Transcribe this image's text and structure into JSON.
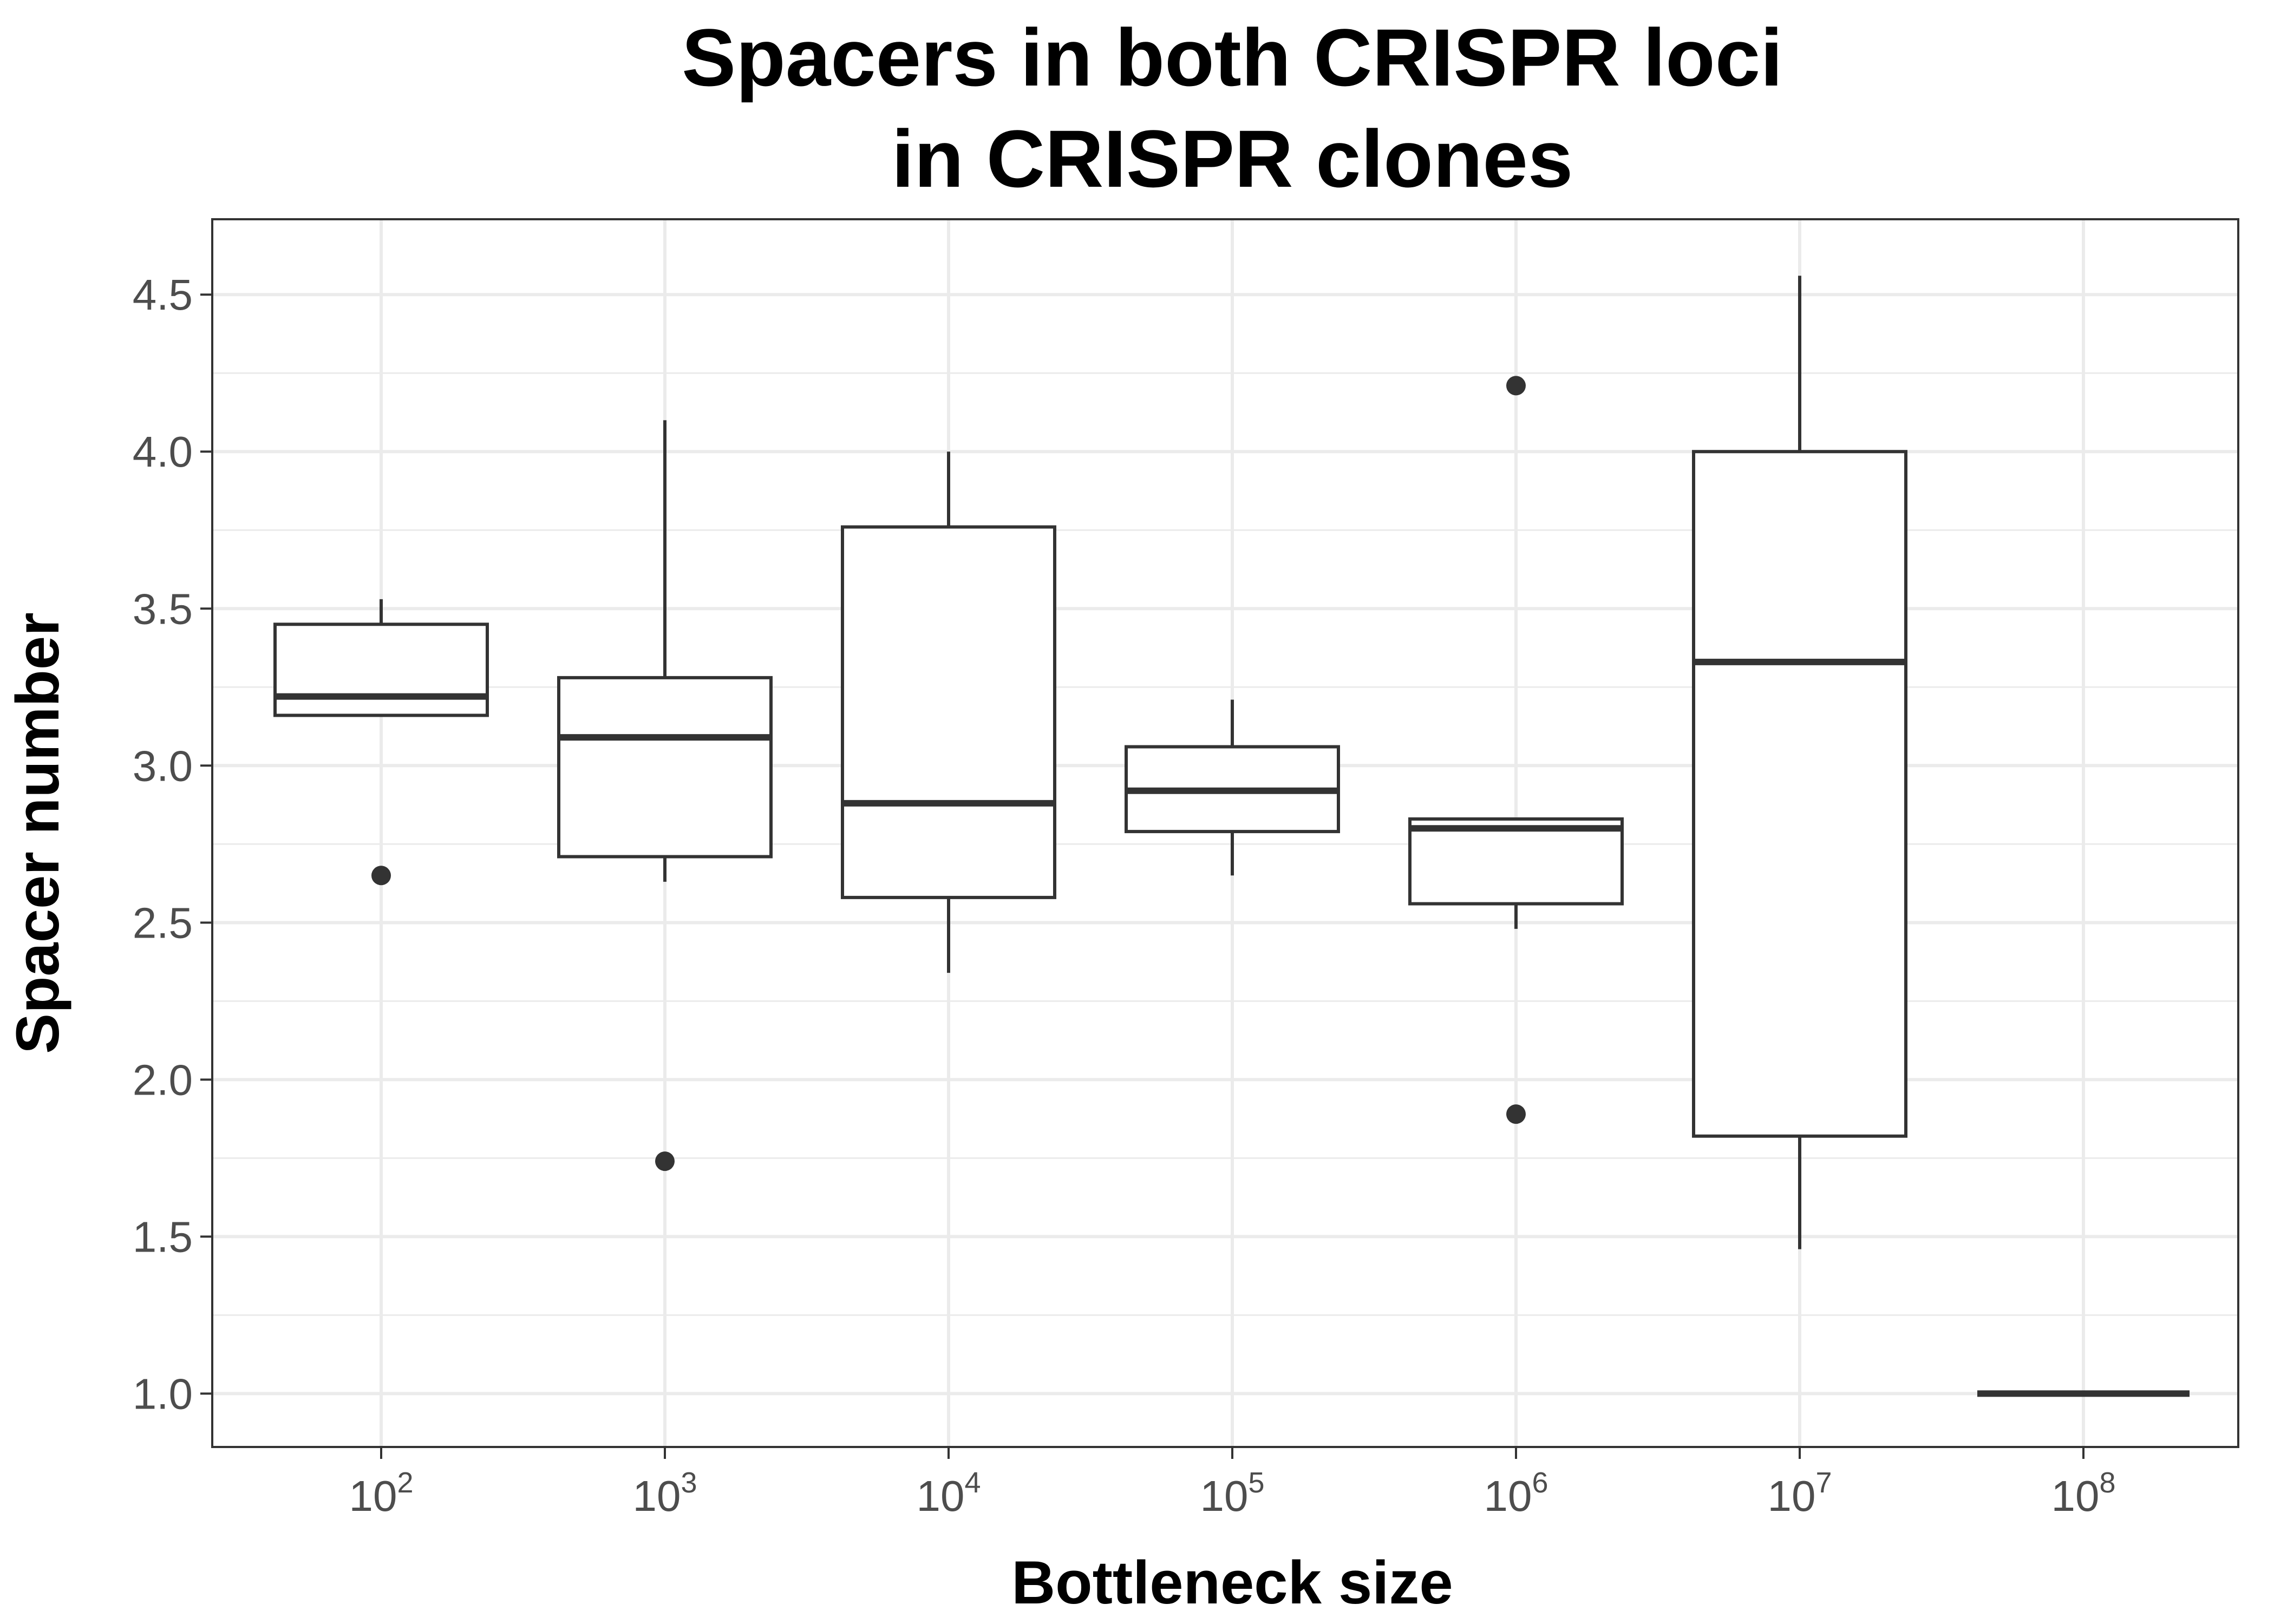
{
  "chart_data": {
    "type": "boxplot",
    "title_lines": [
      "Spacers in both CRISPR loci",
      "in CRISPR clones"
    ],
    "xlabel": "Bottleneck size",
    "ylabel": "Spacer number",
    "ylim": [
      0.83,
      4.74
    ],
    "grid": true,
    "y_ticks": [
      {
        "value": 1.0,
        "label": "1.0"
      },
      {
        "value": 1.5,
        "label": "1.5"
      },
      {
        "value": 2.0,
        "label": "2.0"
      },
      {
        "value": 2.5,
        "label": "2.5"
      },
      {
        "value": 3.0,
        "label": "3.0"
      },
      {
        "value": 3.5,
        "label": "3.5"
      },
      {
        "value": 4.0,
        "label": "4.0"
      },
      {
        "value": 4.5,
        "label": "4.5"
      }
    ],
    "categories": [
      {
        "base": "10",
        "exponent": "2",
        "value": 100
      },
      {
        "base": "10",
        "exponent": "3",
        "value": 1000
      },
      {
        "base": "10",
        "exponent": "4",
        "value": 10000
      },
      {
        "base": "10",
        "exponent": "5",
        "value": 100000
      },
      {
        "base": "10",
        "exponent": "6",
        "value": 1000000
      },
      {
        "base": "10",
        "exponent": "7",
        "value": 10000000
      },
      {
        "base": "10",
        "exponent": "8",
        "value": 100000000
      }
    ],
    "boxes": [
      {
        "category": 100,
        "whisker_low": 3.16,
        "q1": 3.16,
        "median": 3.22,
        "q3": 3.45,
        "whisker_high": 3.53,
        "outliers": [
          2.65
        ]
      },
      {
        "category": 1000,
        "whisker_low": 2.63,
        "q1": 2.71,
        "median": 3.09,
        "q3": 3.28,
        "whisker_high": 4.1,
        "outliers": [
          1.74
        ]
      },
      {
        "category": 10000,
        "whisker_low": 2.34,
        "q1": 2.58,
        "median": 2.88,
        "q3": 3.76,
        "whisker_high": 4.0,
        "outliers": []
      },
      {
        "category": 100000,
        "whisker_low": 2.65,
        "q1": 2.79,
        "median": 2.92,
        "q3": 3.06,
        "whisker_high": 3.21,
        "outliers": []
      },
      {
        "category": 1000000,
        "whisker_low": 2.48,
        "q1": 2.56,
        "median": 2.8,
        "q3": 2.83,
        "whisker_high": 2.83,
        "outliers": [
          4.21,
          1.89
        ]
      },
      {
        "category": 10000000,
        "whisker_low": 1.46,
        "q1": 1.82,
        "median": 3.33,
        "q3": 4.0,
        "whisker_high": 4.56,
        "outliers": []
      },
      {
        "category": 100000000,
        "whisker_low": 1.0,
        "q1": 1.0,
        "median": 1.0,
        "q3": 1.0,
        "whisker_high": 1.0,
        "outliers": []
      }
    ]
  }
}
